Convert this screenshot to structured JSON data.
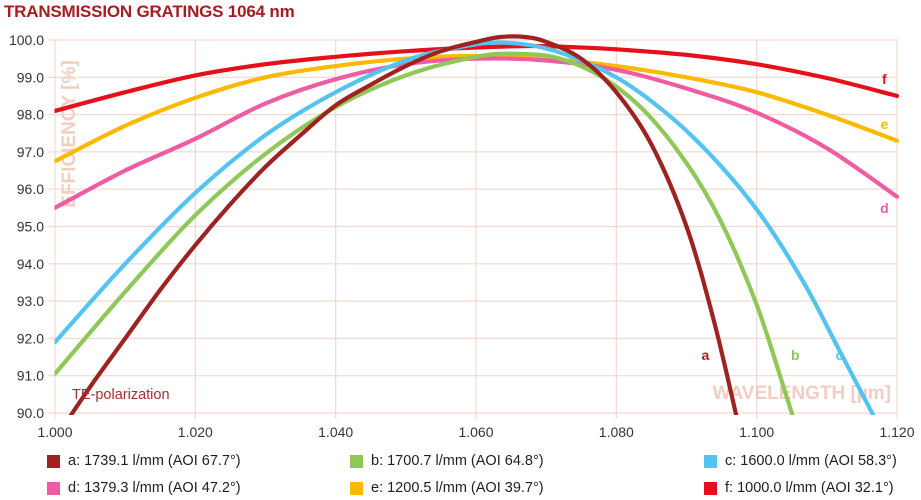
{
  "title": "TRANSMISSION GRATINGS 1064 nm",
  "colors": {
    "title": "#A41D21",
    "grid": "#F6D8D0",
    "watermark": "#F2CDC1",
    "tick_text": "#333333",
    "annotation_text": "#A33030",
    "legend_text": "#1E1E1E",
    "background": "#FFFFFF"
  },
  "chart_data": {
    "type": "line",
    "title": "TRANSMISSION GRATINGS 1064 nm",
    "xlabel": "WAVELENGTH [µm]",
    "ylabel": "EFFICIENCY [%]",
    "annotation": "TE-polarization",
    "grid": true,
    "legend_position": "bottom",
    "xlim": [
      1.0,
      1.12
    ],
    "ylim": [
      90.0,
      100.0
    ],
    "x_ticks": [
      "1.000",
      "1.020",
      "1.040",
      "1.060",
      "1.080",
      "1.100",
      "1.120"
    ],
    "y_ticks": [
      "100.0",
      "99.0",
      "98.0",
      "97.0",
      "96.0",
      "95.0",
      "94.0",
      "93.0",
      "92.0",
      "91.0",
      "90.0"
    ],
    "series": [
      {
        "letter": "a",
        "label": "a: 1739.1 l/mm (AOI 67.7°)",
        "color": "#9E2222",
        "x": [
          1.0,
          1.005,
          1.01,
          1.015,
          1.02,
          1.025,
          1.03,
          1.035,
          1.04,
          1.045,
          1.05,
          1.055,
          1.06,
          1.0635,
          1.067,
          1.07,
          1.075,
          1.08,
          1.085,
          1.09,
          1.094,
          1.0975
        ],
        "y": [
          89.3,
          90.7,
          92.0,
          93.3,
          94.5,
          95.6,
          96.6,
          97.45,
          98.25,
          98.8,
          99.3,
          99.7,
          99.95,
          100.08,
          100.08,
          99.95,
          99.5,
          98.6,
          97.2,
          95.0,
          92.4,
          89.6
        ],
        "letter_x": 1.0927,
        "letter_y": 91.55
      },
      {
        "letter": "b",
        "label": "b: 1700.7 l/mm (AOI 64.8°)",
        "color": "#8FC858",
        "x": [
          1.0,
          1.01,
          1.02,
          1.03,
          1.04,
          1.05,
          1.06,
          1.066,
          1.072,
          1.078,
          1.084,
          1.09,
          1.095,
          1.1,
          1.104,
          1.107
        ],
        "y": [
          91.05,
          93.25,
          95.3,
          96.95,
          98.2,
          99.05,
          99.55,
          99.63,
          99.5,
          99.0,
          98.1,
          96.7,
          95.1,
          92.9,
          90.6,
          88.8
        ],
        "letter_x": 1.1055,
        "letter_y": 91.55
      },
      {
        "letter": "c",
        "label": "c: 1600.0 l/mm (AOI 58.3°)",
        "color": "#55C3F0",
        "x": [
          1.0,
          1.01,
          1.02,
          1.03,
          1.04,
          1.05,
          1.058,
          1.064,
          1.071,
          1.08,
          1.088,
          1.095,
          1.101,
          1.107,
          1.112,
          1.117,
          1.12
        ],
        "y": [
          91.9,
          94.0,
          95.9,
          97.45,
          98.6,
          99.45,
          99.82,
          99.93,
          99.72,
          99.0,
          97.9,
          96.6,
          95.2,
          93.4,
          91.6,
          89.8,
          88.6
        ],
        "letter_x": 1.1118,
        "letter_y": 91.55
      },
      {
        "letter": "d",
        "label": "d: 1379.3 l/mm (AOI 47.2°)",
        "color": "#EE5CA2",
        "x": [
          1.0,
          1.01,
          1.02,
          1.03,
          1.04,
          1.05,
          1.06,
          1.07,
          1.08,
          1.09,
          1.1,
          1.11,
          1.12
        ],
        "y": [
          95.5,
          96.5,
          97.35,
          98.3,
          98.95,
          99.35,
          99.5,
          99.45,
          99.2,
          98.7,
          98.05,
          97.1,
          95.8
        ],
        "letter_x": 1.1182,
        "letter_y": 95.5
      },
      {
        "letter": "e",
        "label": "e: 1200.5 l/mm (AOI 39.7°)",
        "color": "#FBB900",
        "x": [
          1.0,
          1.01,
          1.02,
          1.03,
          1.04,
          1.05,
          1.06,
          1.07,
          1.08,
          1.09,
          1.1,
          1.11,
          1.12
        ],
        "y": [
          96.75,
          97.7,
          98.45,
          99.0,
          99.3,
          99.5,
          99.57,
          99.5,
          99.3,
          99.0,
          98.6,
          98.0,
          97.3
        ],
        "letter_x": 1.1182,
        "letter_y": 97.75
      },
      {
        "letter": "f",
        "label": "f: 1000.0 l/mm (AOI 32.1°)",
        "color": "#E6101A",
        "x": [
          1.0,
          1.01,
          1.02,
          1.03,
          1.04,
          1.05,
          1.06,
          1.068,
          1.075,
          1.08,
          1.09,
          1.1,
          1.11,
          1.12
        ],
        "y": [
          98.1,
          98.6,
          99.05,
          99.35,
          99.55,
          99.7,
          99.8,
          99.84,
          99.8,
          99.75,
          99.6,
          99.35,
          98.98,
          98.5
        ],
        "letter_x": 1.1182,
        "letter_y": 98.95
      }
    ]
  }
}
